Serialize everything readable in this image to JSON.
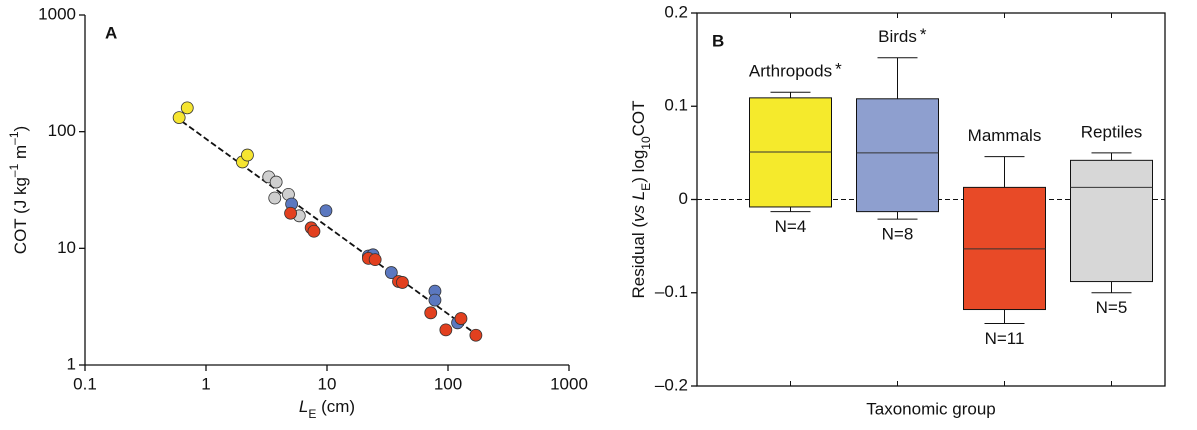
{
  "chart_data": [
    {
      "type": "scatter",
      "panel_label": "A",
      "log_x": true,
      "log_y": true,
      "xlabel": [
        {
          "text": "L",
          "style": "italic"
        },
        {
          "text": "E",
          "style": "sub"
        },
        {
          "text": " (cm)",
          "style": "normal"
        }
      ],
      "ylabel": [
        {
          "text": "COT (J kg",
          "style": "normal"
        },
        {
          "text": "–1",
          "style": "sup"
        },
        {
          "text": " m",
          "style": "normal"
        },
        {
          "text": "–1",
          "style": "sup"
        },
        {
          "text": ")",
          "style": "normal"
        }
      ],
      "xlim": [
        0.1,
        1000
      ],
      "xticks": [
        0.1,
        1,
        10,
        100,
        1000
      ],
      "ylim": [
        1,
        1000
      ],
      "yticks": [
        1,
        10,
        100,
        1000
      ],
      "series": [
        {
          "color": "#f6e531",
          "x": [
            0.6,
            0.7,
            2.0,
            2.2
          ],
          "values": [
            132,
            160,
            55,
            63
          ]
        },
        {
          "color": "#cfcfcf",
          "x": [
            3.3,
            3.8,
            3.7,
            4.8,
            5.9
          ],
          "values": [
            41,
            37,
            27,
            29,
            19
          ]
        },
        {
          "color": "#5b78c0",
          "x": [
            5.1,
            9.8,
            22,
            24,
            34,
            78,
            78,
            120
          ],
          "values": [
            24,
            21,
            8.6,
            8.8,
            6.2,
            4.3,
            3.6,
            2.3
          ]
        },
        {
          "color": "#e2401f",
          "x": [
            5,
            7.4,
            7.8,
            22,
            25,
            39,
            42,
            72,
            96,
            128,
            170
          ],
          "values": [
            20,
            15,
            14,
            8.2,
            8.0,
            5.2,
            5.1,
            2.8,
            2.0,
            2.5,
            1.8
          ]
        }
      ],
      "fit": {
        "x": [
          0.55,
          175
        ],
        "y": [
          136,
          1.8
        ]
      }
    },
    {
      "type": "box",
      "panel_label": "B",
      "ylabel": [
        {
          "text": "Residual (",
          "style": "normal"
        },
        {
          "text": "vs",
          "style": "italic"
        },
        {
          "text": " L",
          "style": "italic"
        },
        {
          "text": "E",
          "style": "sub"
        },
        {
          "text": ") log",
          "style": "normal"
        },
        {
          "text": "10",
          "style": "sub"
        },
        {
          "text": "COT",
          "style": "normal"
        }
      ],
      "xlabel": "Taxonomic group",
      "ylim": [
        -0.2,
        0.2
      ],
      "yticks": [
        {
          "value": -0.2,
          "label": "–0.2"
        },
        {
          "value": -0.1,
          "label": "–0.1"
        },
        0,
        0.1,
        0.2
      ],
      "hline": 0,
      "categories": [
        "Arthropods",
        "Birds",
        "Mammals",
        "Reptiles"
      ],
      "markers": [
        "*",
        "*",
        null,
        null
      ],
      "n_labels": [
        "N=4",
        "N=8",
        "N=11",
        "N=5"
      ],
      "colors": [
        "#f5ea2c",
        "#8e9fcf",
        "#e84a27",
        "#d7d7d7"
      ],
      "min": [
        -0.013,
        -0.021,
        -0.133,
        -0.1
      ],
      "q1": [
        -0.008,
        -0.013,
        -0.118,
        -0.088
      ],
      "median": [
        0.051,
        0.05,
        -0.053,
        0.013
      ],
      "q3": [
        0.109,
        0.108,
        0.013,
        0.042
      ],
      "max": [
        0.115,
        0.152,
        0.046,
        0.05
      ]
    }
  ]
}
